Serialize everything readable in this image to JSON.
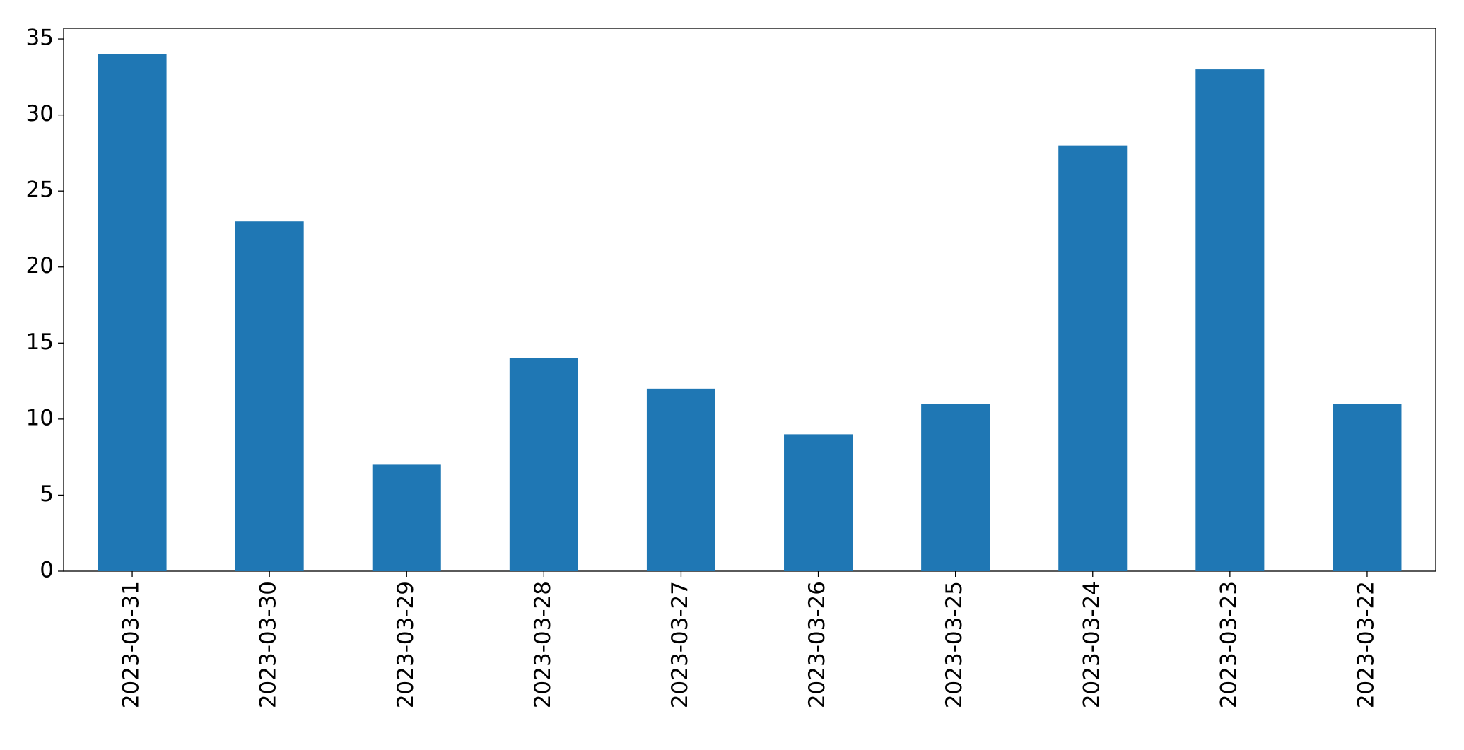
{
  "chart_data": {
    "type": "bar",
    "categories": [
      "2023-03-31",
      "2023-03-30",
      "2023-03-29",
      "2023-03-28",
      "2023-03-27",
      "2023-03-26",
      "2023-03-25",
      "2023-03-24",
      "2023-03-23",
      "2023-03-22"
    ],
    "values": [
      34,
      23,
      7,
      14,
      12,
      9,
      11,
      28,
      33,
      11
    ],
    "color": "#1f77b4",
    "ylim": [
      0,
      35.7
    ],
    "yticks": [
      0,
      5,
      10,
      15,
      20,
      25,
      30,
      35
    ],
    "grid": false
  }
}
